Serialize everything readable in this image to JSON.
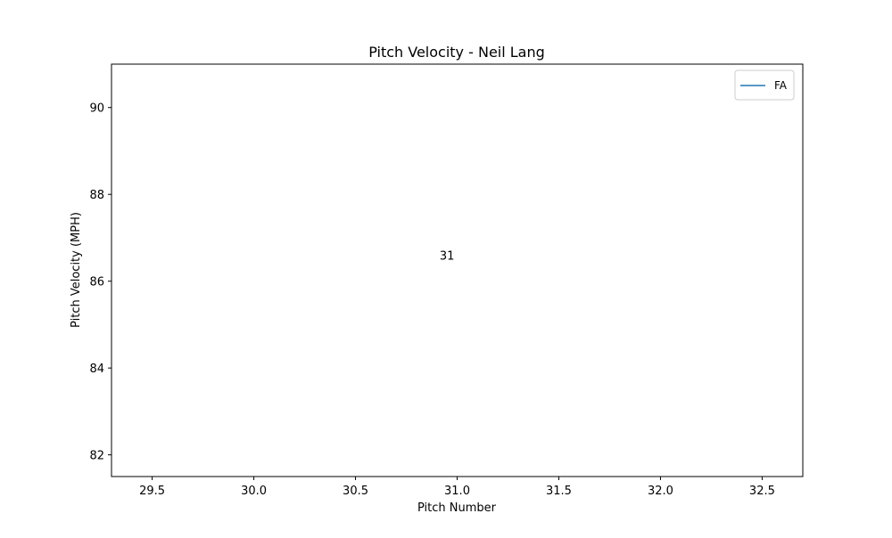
{
  "chart_data": {
    "type": "line",
    "title": "Pitch Velocity - Neil Lang",
    "xlabel": "Pitch Number",
    "ylabel": "Pitch Velocity (MPH)",
    "xlim": [
      29.3,
      32.7
    ],
    "ylim": [
      81.5,
      91.0
    ],
    "x_ticks": [
      29.5,
      30.0,
      30.5,
      31.0,
      31.5,
      32.0,
      32.5
    ],
    "x_tick_labels": [
      "29.5",
      "30.0",
      "30.5",
      "31.0",
      "31.5",
      "32.0",
      "32.5"
    ],
    "y_ticks": [
      82,
      84,
      86,
      88,
      90
    ],
    "y_tick_labels": [
      "82",
      "84",
      "86",
      "88",
      "90"
    ],
    "grid": false,
    "legend_position": "upper right",
    "series": [
      {
        "name": "FA",
        "color": "#1f77b4",
        "x": [
          31
        ],
        "y": [
          86.5
        ]
      }
    ],
    "annotations": [
      {
        "text": "31",
        "x": 30.95,
        "y": 86.6
      }
    ]
  }
}
